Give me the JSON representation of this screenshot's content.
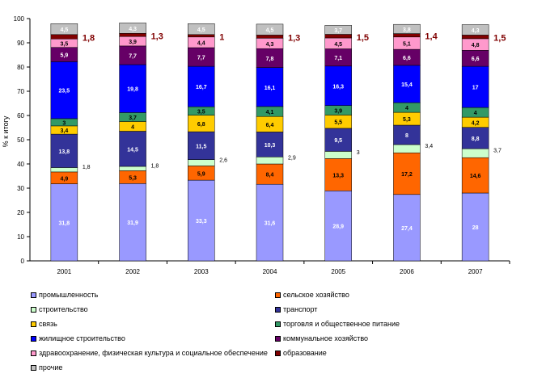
{
  "chart_data": {
    "type": "bar",
    "stacked": true,
    "ylabel": "% к итогу",
    "ylim": [
      0,
      100
    ],
    "yticks": [
      0,
      10,
      20,
      30,
      40,
      50,
      60,
      70,
      80,
      90,
      100
    ],
    "grid": false,
    "legend_position": "bottom",
    "categories": [
      "2001",
      "2002",
      "2003",
      "2004",
      "2005",
      "2006",
      "2007"
    ],
    "series": [
      {
        "name": "промышленность",
        "color": "#9999ff",
        "values": [
          31.8,
          31.9,
          33.3,
          31.6,
          28.9,
          27.4,
          28
        ],
        "labels": [
          "31,8",
          "31,9",
          "33,3",
          "31,6",
          "28,9",
          "27,4",
          "28"
        ]
      },
      {
        "name": "сельское хозяйство",
        "color": "#ff6600",
        "values": [
          4.9,
          5.3,
          5.9,
          8.4,
          13.3,
          17.2,
          14.6
        ],
        "labels": [
          "4,9",
          "5,3",
          "5,9",
          "8,4",
          "13,3",
          "17,2",
          "14,6"
        ]
      },
      {
        "name": "строительство",
        "color": "#ccffcc",
        "values": [
          1.8,
          1.8,
          2.6,
          2.9,
          3,
          3.4,
          3.7
        ],
        "labels": [
          "1,8",
          "1,8",
          "2,6",
          "2,9",
          "3",
          "3,4",
          "3,7"
        ]
      },
      {
        "name": "транспорт",
        "color": "#333399",
        "values": [
          13.8,
          14.5,
          11.5,
          10.3,
          9.5,
          8,
          8.8
        ],
        "labels": [
          "13,8",
          "14,5",
          "11,5",
          "10,3",
          "9,5",
          "8",
          "8,8"
        ]
      },
      {
        "name": "связь",
        "color": "#ffcc00",
        "values": [
          3.4,
          4,
          6.8,
          6.4,
          5.5,
          5.3,
          4.2
        ],
        "labels": [
          "3,4",
          "4",
          "6,8",
          "6,4",
          "5,5",
          "5,3",
          "4,2"
        ]
      },
      {
        "name": "торговля и общественное питание",
        "color": "#339966",
        "values": [
          3,
          3.7,
          3.5,
          4.1,
          3.9,
          4,
          4
        ],
        "labels": [
          "3",
          "3,7",
          "3,5",
          "4,1",
          "3,9",
          "4",
          "4"
        ]
      },
      {
        "name": "жилищное строительство",
        "color": "#0000ff",
        "values": [
          23.5,
          19.8,
          16.7,
          16.1,
          16.3,
          15.4,
          17
        ],
        "labels": [
          "23,5",
          "19,8",
          "16,7",
          "16,1",
          "16,3",
          "15,4",
          "17"
        ]
      },
      {
        "name": "коммунальное хозяйство",
        "color": "#660066",
        "values": [
          5.9,
          7.7,
          7.7,
          7.8,
          7.1,
          6.6,
          6.6
        ],
        "labels": [
          "5,9",
          "7,7",
          "7,7",
          "7,8",
          "7,1",
          "6,6",
          "6,6"
        ]
      },
      {
        "name": "здравоохранение, физическая культура и социальное обеспечение",
        "color": "#ff99cc",
        "values": [
          3.5,
          3.9,
          4.4,
          4.3,
          4.5,
          5.1,
          4.8
        ],
        "labels": [
          "3,5",
          "3,9",
          "4,4",
          "4,3",
          "4,5",
          "5,1",
          "4,8"
        ]
      },
      {
        "name": "образование",
        "color": "#800000",
        "values": [
          1.8,
          1.3,
          1,
          1.3,
          1.5,
          1.4,
          1.5
        ],
        "labels": [
          "1,8",
          "1,3",
          "1",
          "1,3",
          "1,5",
          "1,4",
          "1,5"
        ]
      },
      {
        "name": "прочие",
        "color": "#c0c0c0",
        "values": [
          4.5,
          4.3,
          4.5,
          4.5,
          3.7,
          3.8,
          4.3
        ],
        "labels": [
          "4,5",
          "4,3",
          "4,5",
          "4,5",
          "3,7",
          "3,8",
          "4,3"
        ]
      }
    ]
  }
}
